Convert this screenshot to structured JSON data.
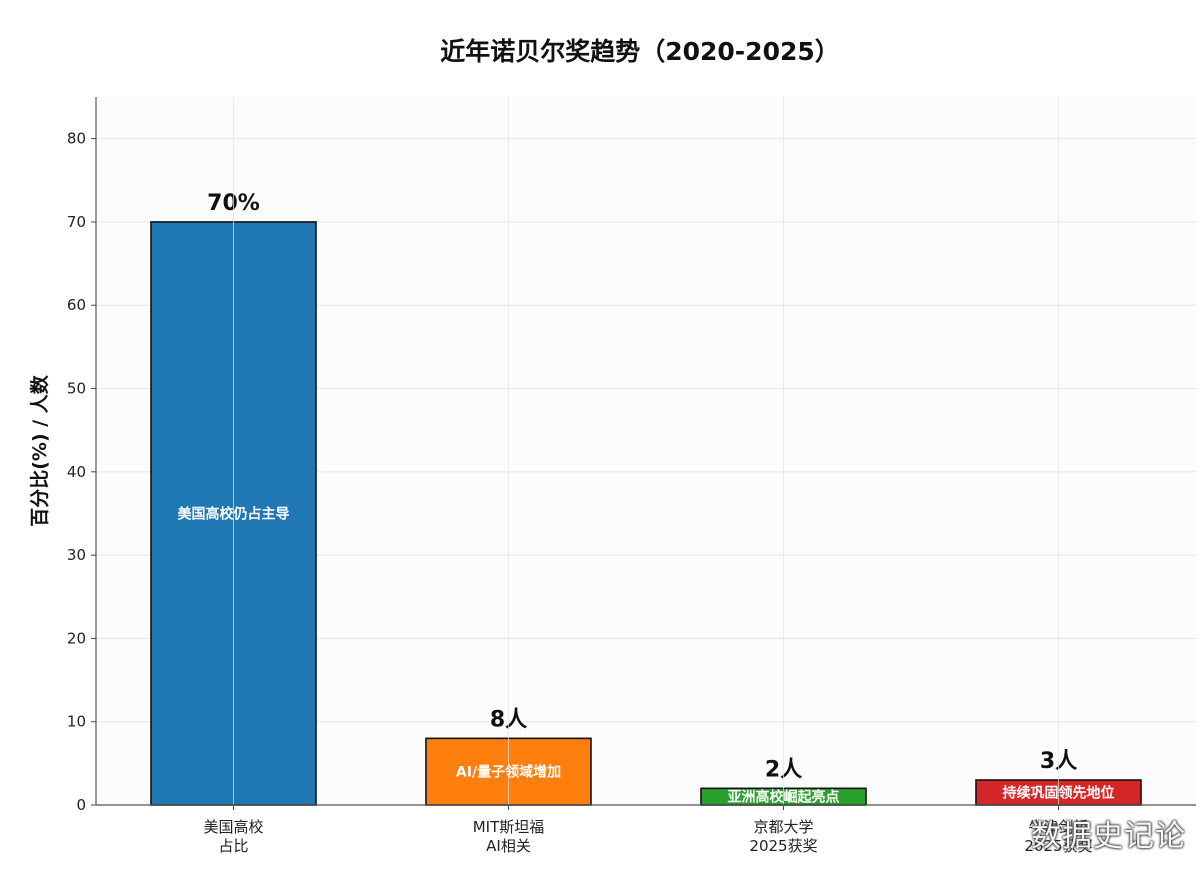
{
  "chart_data": {
    "type": "bar",
    "title": "近年诺贝尔奖趋势（2020-2025）",
    "xlabel": "",
    "ylabel": "百分比(%) / 人数",
    "ylim": [
      0,
      85
    ],
    "yticks": [
      0,
      10,
      20,
      30,
      40,
      50,
      60,
      70,
      80
    ],
    "grid": true,
    "categories": [
      [
        "美国高校",
        "占比"
      ],
      [
        "MIT斯坦福",
        "AI相关"
      ],
      [
        "京都大学",
        "2025获奖"
      ],
      [
        "牛津剑桥",
        "2025获奖"
      ]
    ],
    "values": [
      70,
      8,
      2,
      3
    ],
    "value_labels": [
      "70%",
      "8人",
      "2人",
      "3人"
    ],
    "annotations": [
      "美国高校仍占主导",
      "AI/量子领域增加",
      "亚洲高校崛起亮点",
      "持续巩固领先地位"
    ],
    "colors": [
      "#1f77b4",
      "#ff7f0e",
      "#2ca02c",
      "#d62728"
    ]
  },
  "watermark": "数据史记论"
}
